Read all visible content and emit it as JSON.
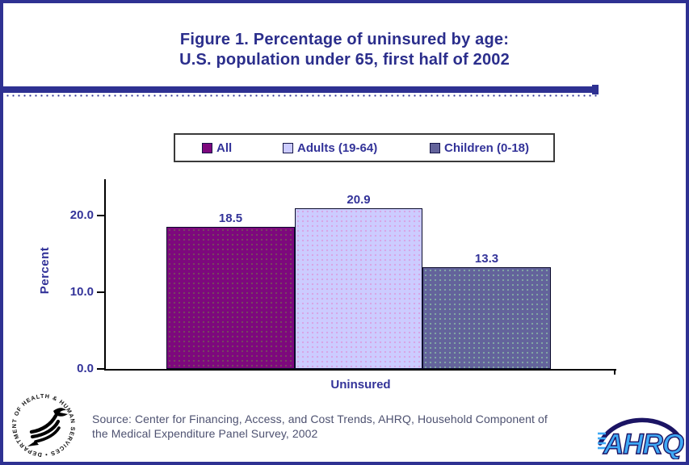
{
  "page": {
    "background": "#FFFFFF",
    "border_color": "#2E3192"
  },
  "title": {
    "line1": "Figure 1.  Percentage of uninsured by age:",
    "line2": "U.S. population under 65, first half of 2002",
    "color": "#2B2E8C"
  },
  "legend": {
    "items": [
      {
        "label": "All",
        "color": "#7D087D"
      },
      {
        "label": "Adults (19-64)",
        "color": "#CCCCFF"
      },
      {
        "label": "Children (0-18)",
        "color": "#63639B"
      }
    ]
  },
  "chart_data": {
    "type": "bar",
    "categories": [
      "All",
      "Adults (19-64)",
      "Children (0-18)"
    ],
    "values": [
      18.5,
      20.9,
      13.3
    ],
    "value_labels": [
      "18.5",
      "20.9",
      "13.3"
    ],
    "title": "Figure 1. Percentage of uninsured by age: U.S. population under 65, first half of 2002",
    "xlabel": "Uninsured",
    "ylabel": "Percent",
    "ytick_labels": [
      "20.0",
      "10.0",
      "0.0"
    ],
    "yticks": [
      20.0,
      10.0,
      0.0
    ],
    "ylim": [
      0,
      25
    ],
    "grid": false,
    "legend_position": "top",
    "bar_colors": [
      "#7D087D",
      "#CCCCFF",
      "#63639B"
    ],
    "text_color": "#333399",
    "axis_color": "#000000"
  },
  "source": {
    "line1": "Source: Center for Financing, Access, and Cost Trends, AHRQ, Household Component of",
    "line2": "the Medical Expenditure Panel Survey, 2002",
    "color": "#4D5170"
  },
  "logos": {
    "hhs_seal_text": "DEPARTMENT OF HEALTH & HUMAN SERVICES • USA",
    "ahrq_wordmark": "AHRQ"
  }
}
